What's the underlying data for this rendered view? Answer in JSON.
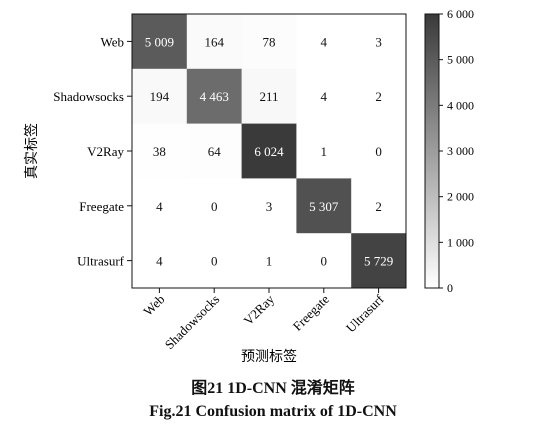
{
  "chart_data": {
    "type": "heatmap",
    "row_labels": [
      "Web",
      "Shadowsocks",
      "V2Ray",
      "Freegate",
      "Ultrasurf"
    ],
    "col_labels": [
      "Web",
      "Shadowsocks",
      "V2Ray",
      "Freegate",
      "Ultrasurf"
    ],
    "values": [
      [
        5009,
        164,
        78,
        4,
        3
      ],
      [
        194,
        4463,
        211,
        4,
        2
      ],
      [
        38,
        64,
        6024,
        1,
        0
      ],
      [
        4,
        0,
        3,
        5307,
        2
      ],
      [
        4,
        0,
        1,
        0,
        5729
      ]
    ],
    "cell_labels": [
      [
        "5 009",
        "164",
        "78",
        "4",
        "3"
      ],
      [
        "194",
        "4 463",
        "211",
        "4",
        "2"
      ],
      [
        "38",
        "64",
        "6 024",
        "1",
        "0"
      ],
      [
        "4",
        "0",
        "3",
        "5 307",
        "2"
      ],
      [
        "4",
        "0",
        "1",
        "0",
        "5 729"
      ]
    ],
    "xlabel": "预测标签",
    "ylabel": "真实标签",
    "colorbar": {
      "range": [
        0,
        6000
      ],
      "ticks": [
        0,
        1000,
        2000,
        3000,
        4000,
        5000,
        6000
      ],
      "tick_labels": [
        "0",
        "1 000",
        "2 000",
        "3 000",
        "4 000",
        "5 000",
        "6 000"
      ],
      "color_low": "#ffffff",
      "color_high": "#3a3a3a"
    }
  },
  "caption": {
    "cn": "图21    1D-CNN 混淆矩阵",
    "en": "Fig.21    Confusion matrix of 1D-CNN"
  }
}
